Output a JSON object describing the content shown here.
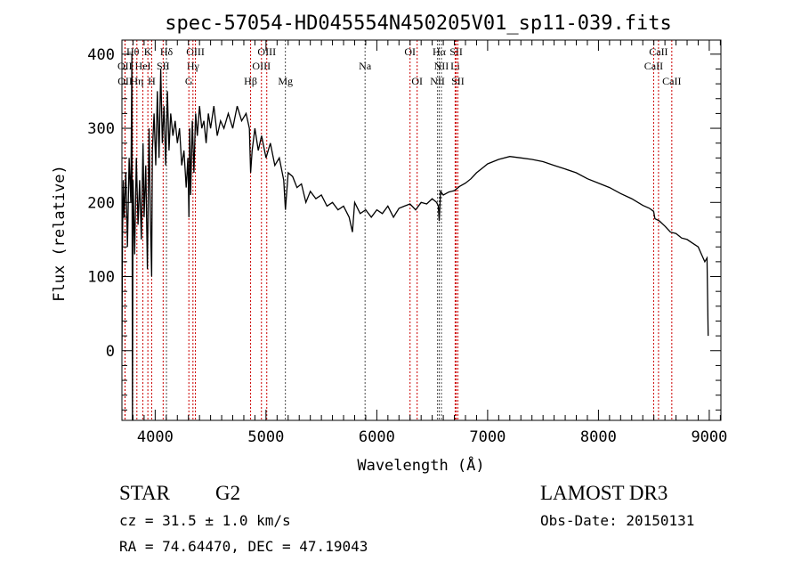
{
  "chart_data": {
    "type": "line",
    "title": "spec-57054-HD045554N450205V01_sp11-039.fits",
    "xlabel": "Wavelength (Å)",
    "ylabel": "Flux (relative)",
    "xlim": [
      3700,
      9105
    ],
    "ylim": [
      -94,
      419
    ],
    "xticks": [
      4000,
      5000,
      6000,
      7000,
      8000,
      9000
    ],
    "yticks": [
      0,
      100,
      200,
      300,
      400
    ],
    "grid": false,
    "series": [
      {
        "name": "spectrum",
        "color": "#000000",
        "x": [
          3700,
          3705,
          3712,
          3720,
          3735,
          3750,
          3765,
          3780,
          3790,
          3795,
          3800,
          3815,
          3830,
          3845,
          3860,
          3875,
          3890,
          3900,
          3915,
          3930,
          3945,
          3955,
          3968,
          3975,
          3990,
          4005,
          4020,
          4035,
          4050,
          4065,
          4080,
          4095,
          4110,
          4125,
          4140,
          4160,
          4180,
          4200,
          4220,
          4240,
          4260,
          4280,
          4295,
          4305,
          4312,
          4320,
          4335,
          4350,
          4365,
          4380,
          4400,
          4420,
          4440,
          4460,
          4480,
          4500,
          4530,
          4560,
          4590,
          4620,
          4660,
          4700,
          4740,
          4780,
          4820,
          4850,
          4861,
          4875,
          4900,
          4930,
          4960,
          5000,
          5040,
          5080,
          5120,
          5160,
          5175,
          5200,
          5240,
          5280,
          5320,
          5360,
          5400,
          5450,
          5500,
          5550,
          5600,
          5650,
          5700,
          5750,
          5780,
          5800,
          5850,
          5900,
          5950,
          6000,
          6050,
          6100,
          6150,
          6200,
          6250,
          6300,
          6350,
          6400,
          6450,
          6500,
          6540,
          6555,
          6563,
          6575,
          6600,
          6650,
          6700,
          6750,
          6800,
          6850,
          6900,
          6950,
          7000,
          7100,
          7200,
          7300,
          7400,
          7500,
          7600,
          7700,
          7800,
          7900,
          8000,
          8100,
          8200,
          8300,
          8400,
          8460,
          8498,
          8510,
          8550,
          8600,
          8650,
          8700,
          8750,
          8800,
          8850,
          8900,
          8930,
          8960,
          8980,
          8990
        ],
        "y": [
          0,
          150,
          230,
          180,
          240,
          140,
          260,
          200,
          400,
          -94,
          230,
          130,
          260,
          170,
          230,
          150,
          280,
          180,
          250,
          110,
          300,
          190,
          100,
          270,
          320,
          250,
          350,
          260,
          380,
          280,
          330,
          250,
          350,
          270,
          320,
          290,
          310,
          280,
          300,
          250,
          270,
          220,
          260,
          180,
          300,
          210,
          310,
          240,
          320,
          290,
          330,
          300,
          310,
          280,
          320,
          300,
          330,
          290,
          310,
          300,
          320,
          300,
          330,
          310,
          320,
          300,
          240,
          270,
          300,
          270,
          290,
          260,
          280,
          250,
          260,
          230,
          190,
          240,
          235,
          220,
          225,
          200,
          215,
          205,
          210,
          195,
          200,
          190,
          195,
          180,
          160,
          200,
          185,
          190,
          180,
          190,
          185,
          195,
          180,
          192,
          195,
          198,
          190,
          200,
          198,
          205,
          200,
          195,
          175,
          215,
          210,
          214,
          216,
          222,
          226,
          232,
          240,
          246,
          252,
          258,
          262,
          260,
          258,
          255,
          250,
          245,
          240,
          232,
          226,
          220,
          212,
          205,
          196,
          192,
          188,
          178,
          175,
          168,
          160,
          158,
          152,
          150,
          145,
          140,
          130,
          120,
          125,
          20
        ]
      }
    ],
    "line_markers": [
      {
        "label": "Hθ",
        "wave": 3798,
        "row": 1,
        "color": "#cc0000"
      },
      {
        "label": "K",
        "wave": 3934,
        "row": 1,
        "color": "#cc0000"
      },
      {
        "label": "Hδ",
        "wave": 4102,
        "row": 1,
        "color": "#000000"
      },
      {
        "label": "OIII",
        "wave": 4363,
        "row": 1,
        "color": "#cc0000"
      },
      {
        "label": "OIII",
        "wave": 5007,
        "row": 1,
        "color": "#cc0000"
      },
      {
        "label": "OI",
        "wave": 6300,
        "row": 1,
        "color": "#cc0000"
      },
      {
        "label": "Hα",
        "wave": 6563,
        "row": 1,
        "color": "#000000"
      },
      {
        "label": "SII",
        "wave": 6716,
        "row": 1,
        "color": "#cc0000"
      },
      {
        "label": "CaII",
        "wave": 8542,
        "row": 1,
        "color": "#cc0000"
      },
      {
        "label": "OII",
        "wave": 3727,
        "row": 2,
        "color": "#cc0000"
      },
      {
        "label": "HeI",
        "wave": 3889,
        "row": 2,
        "color": "#cc0000"
      },
      {
        "label": "SII",
        "wave": 4072,
        "row": 2,
        "color": "#cc0000"
      },
      {
        "label": "Hγ",
        "wave": 4341,
        "row": 2,
        "color": "#cc0000"
      },
      {
        "label": "OIII",
        "wave": 4959,
        "row": 2,
        "color": "#cc0000"
      },
      {
        "label": "Na",
        "wave": 5894,
        "row": 2,
        "color": "#000000"
      },
      {
        "label": "NII",
        "wave": 6583,
        "row": 2,
        "color": "#000000"
      },
      {
        "label": "Li",
        "wave": 6707,
        "row": 2,
        "color": "#cc0000"
      },
      {
        "label": "CaII",
        "wave": 8498,
        "row": 2,
        "color": "#cc0000"
      },
      {
        "label": "OII",
        "wave": 3729,
        "row": 3,
        "color": "#cc0000"
      },
      {
        "label": "Hη",
        "wave": 3835,
        "row": 3,
        "color": "#cc0000"
      },
      {
        "label": "H",
        "wave": 3969,
        "row": 3,
        "color": "#cc0000"
      },
      {
        "label": "G",
        "wave": 4304,
        "row": 3,
        "color": "#cc0000"
      },
      {
        "label": "Hβ",
        "wave": 4861,
        "row": 3,
        "color": "#cc0000"
      },
      {
        "label": "Mg",
        "wave": 5175,
        "row": 3,
        "color": "#000000"
      },
      {
        "label": "OI",
        "wave": 6364,
        "row": 3,
        "color": "#cc0000"
      },
      {
        "label": "NII",
        "wave": 6548,
        "row": 3,
        "color": "#000000"
      },
      {
        "label": "SII",
        "wave": 6731,
        "row": 3,
        "color": "#cc0000"
      },
      {
        "label": "CaII",
        "wave": 8662,
        "row": 3,
        "color": "#cc0000"
      }
    ]
  },
  "info": {
    "class": "STAR",
    "subclass": "G2",
    "survey": "LAMOST DR3",
    "cz": "cz = 31.5 ± 1.0 km/s",
    "obs_date": "Obs-Date: 20150131",
    "coords": "RA =  74.64470, DEC =  47.19043"
  }
}
